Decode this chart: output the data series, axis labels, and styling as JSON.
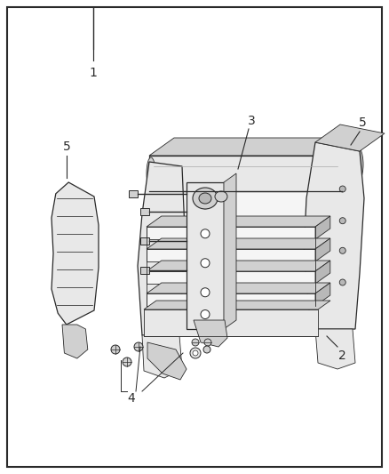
{
  "background_color": "#ffffff",
  "border_color": "#2a2a2a",
  "line_color": "#2a2a2a",
  "label_color": "#2a2a2a",
  "figsize": [
    4.38,
    5.33
  ],
  "dpi": 100,
  "fill_light": "#e8e8e8",
  "fill_mid": "#d0d0d0",
  "fill_dark": "#b8b8b8",
  "fill_white": "#f5f5f5"
}
